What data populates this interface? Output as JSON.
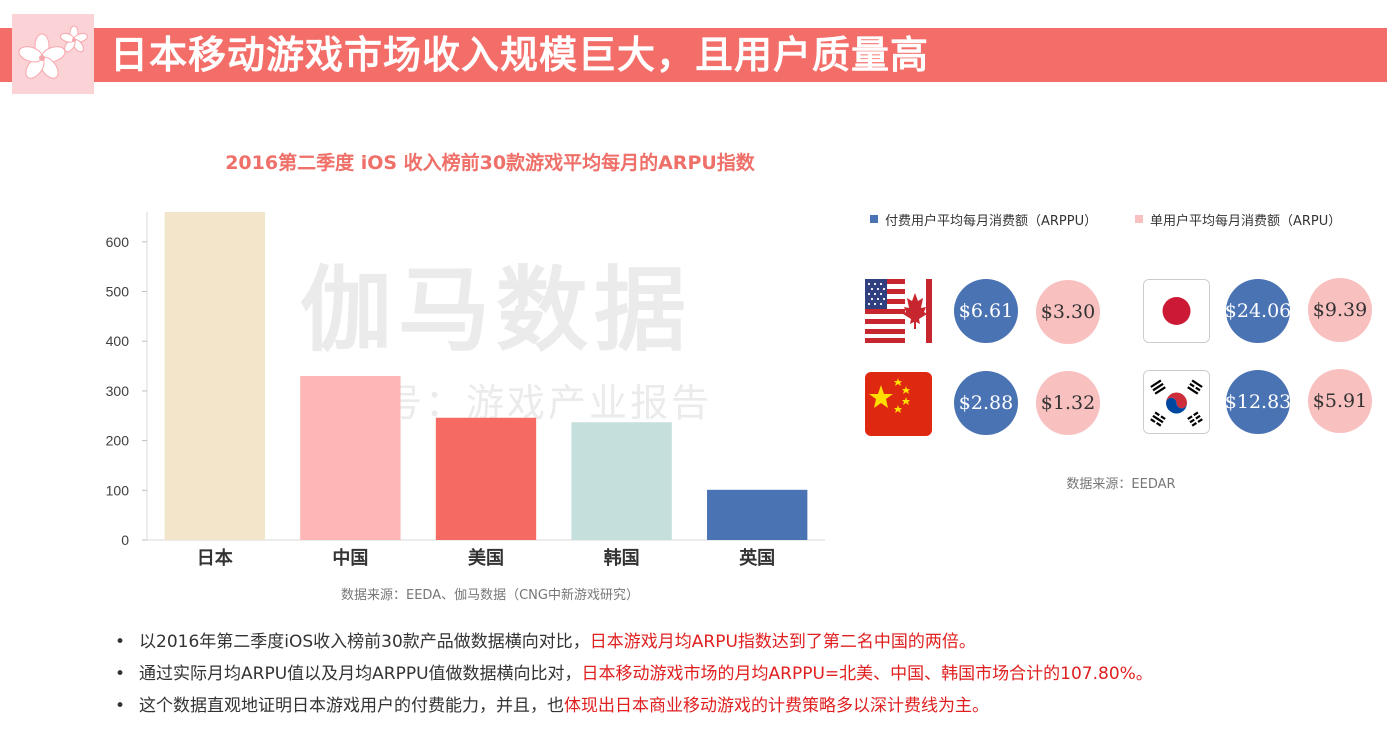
{
  "header": {
    "title": "日本移动游戏市场收入规模巨大，且用户质量高"
  },
  "watermark": {
    "line1": "伽马数据",
    "line2": "微信号：游戏产业报告"
  },
  "chart_data": {
    "type": "bar",
    "title": "2016第二季度 iOS 收入榜前30款游戏平均每月的ARPU指数",
    "categories": [
      "日本",
      "中国",
      "美国",
      "韩国",
      "英国"
    ],
    "values": [
      660,
      330,
      246,
      237,
      101
    ],
    "colors": [
      "#f2e5c9",
      "#ffb6b6",
      "#f56a62",
      "#c5dfdd",
      "#4a73b3"
    ],
    "ylim": [
      0,
      660
    ],
    "yticks": [
      0,
      100,
      200,
      300,
      400,
      500,
      600
    ],
    "grid": false,
    "source": "数据来源：EEDA、伽马数据（CNG中新游戏研究）"
  },
  "legend": {
    "arppu": {
      "label": "付费用户平均每月消费额（ARPPU）",
      "color": "#4a73b3"
    },
    "arpu": {
      "label": "单用户平均每月消费额（ARPU）",
      "color": "#f9c0c0"
    }
  },
  "regions": [
    {
      "flag_icon": "us-canada-flag-icon",
      "arppu": "$6.61",
      "arpu": "$3.30"
    },
    {
      "flag_icon": "japan-flag-icon",
      "arppu": "$24.06",
      "arpu": "$9.39"
    },
    {
      "flag_icon": "china-flag-icon",
      "arppu": "$2.88",
      "arpu": "$1.32"
    },
    {
      "flag_icon": "korea-flag-icon",
      "arppu": "$12.83",
      "arpu": "$5.91"
    }
  ],
  "side_source": "数据来源：EEDAR",
  "bullets": [
    {
      "prefix": "以2016年第二季度iOS收入榜前30款产品做数据横向对比，",
      "highlight": "日本游戏月均ARPU指数达到了第二名中国的两倍。"
    },
    {
      "prefix": "通过实际月均ARPU值以及月均ARPPU值做数据横向比对，",
      "highlight": "日本移动游戏市场的月均ARPPU=北美、中国、韩国市场合计的107.80%。"
    },
    {
      "prefix": "这个数据直观地证明日本游戏用户的付费能力，并且，也",
      "highlight": "体现出日本商业移动游戏的计费策略多以深计费线为主。"
    }
  ],
  "colors": {
    "banner": "#f46e69",
    "highlight_text": "#e02020",
    "chart_title": "#ef6f69"
  }
}
